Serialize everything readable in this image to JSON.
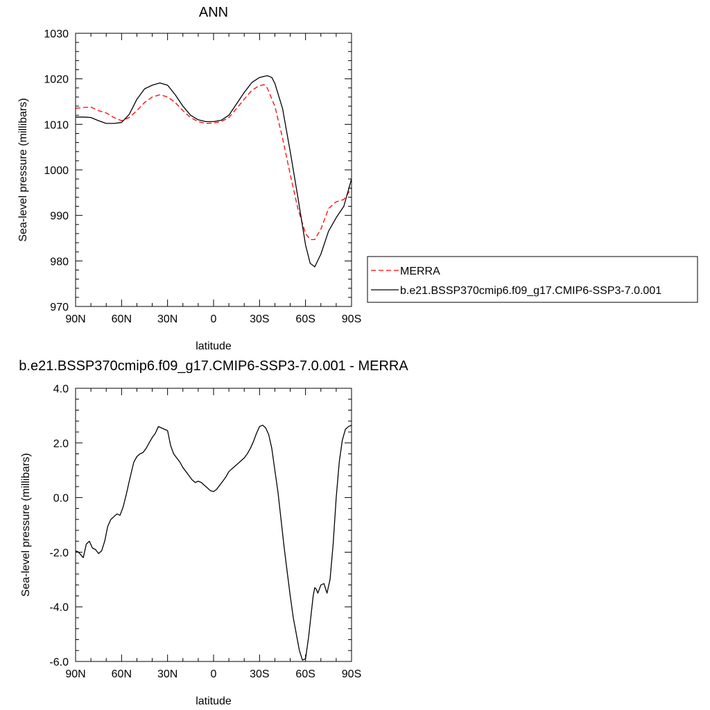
{
  "chart_data": [
    {
      "type": "line",
      "title": "ANN",
      "xlabel": "latitude",
      "ylabel": "Sea-level pressure (millibars)",
      "xlim": [
        -90,
        90
      ],
      "ylim": [
        970,
        1030
      ],
      "x_direction": "north-to-south",
      "x_ticks": [
        -90,
        -60,
        -30,
        0,
        30,
        60,
        90
      ],
      "x_tick_labels": [
        "90N",
        "60N",
        "30N",
        "0",
        "30S",
        "60S",
        "90S"
      ],
      "y_ticks": [
        970,
        980,
        990,
        1000,
        1010,
        1020,
        1030
      ],
      "y_tick_labels": [
        "970",
        "980",
        "990",
        "1000",
        "1010",
        "1020",
        "1030"
      ],
      "grid": false,
      "legend_position": "right",
      "series": [
        {
          "name": "MERRA",
          "color": "#ff0000",
          "dash": "dashed",
          "x": [
            -90,
            -85,
            -80,
            -75,
            -70,
            -65,
            -60,
            -55,
            -50,
            -45,
            -40,
            -35,
            -30,
            -25,
            -20,
            -15,
            -10,
            -5,
            0,
            5,
            10,
            15,
            20,
            25,
            30,
            33,
            35,
            40,
            45,
            50,
            55,
            60,
            63,
            66,
            70,
            75,
            80,
            85,
            90
          ],
          "y": [
            1013.5,
            1013.7,
            1013.8,
            1013.0,
            1012.5,
            1011.5,
            1010.8,
            1011.5,
            1013.0,
            1014.8,
            1016.0,
            1016.5,
            1016.0,
            1014.8,
            1013.0,
            1011.5,
            1010.6,
            1010.2,
            1010.3,
            1010.6,
            1011.5,
            1013.5,
            1015.5,
            1017.5,
            1018.5,
            1018.7,
            1018.0,
            1014.0,
            1007.0,
            999.0,
            991.5,
            986.0,
            984.7,
            984.7,
            987.0,
            991.5,
            993.0,
            993.5,
            996.0
          ]
        },
        {
          "name": "b.e21.BSSP370cmip6.f09_g17.CMIP6-SSP3-7.0.001",
          "color": "#000000",
          "dash": "solid",
          "x": [
            -90,
            -85,
            -80,
            -75,
            -70,
            -65,
            -60,
            -55,
            -50,
            -45,
            -40,
            -35,
            -30,
            -25,
            -20,
            -15,
            -10,
            -5,
            0,
            5,
            10,
            15,
            20,
            25,
            30,
            35,
            38,
            40,
            45,
            50,
            55,
            60,
            63,
            66,
            70,
            75,
            80,
            85,
            90
          ],
          "y": [
            1011.6,
            1011.6,
            1011.5,
            1010.8,
            1010.2,
            1010.2,
            1010.4,
            1012.2,
            1015.5,
            1017.8,
            1018.6,
            1019.1,
            1018.6,
            1016.5,
            1014.0,
            1012.0,
            1011.0,
            1010.6,
            1010.6,
            1010.9,
            1012.0,
            1014.5,
            1017.0,
            1019.2,
            1020.3,
            1020.7,
            1020.3,
            1019.0,
            1013.5,
            1004.0,
            994.0,
            983.5,
            979.5,
            978.7,
            981.5,
            986.5,
            989.5,
            992.0,
            998.0
          ]
        }
      ]
    },
    {
      "type": "line",
      "title": "b.e21.BSSP370cmip6.f09_g17.CMIP6-SSP3-7.0.001 - MERRA",
      "xlabel": "latitude",
      "ylabel": "Sea-level pressure (millibars)",
      "xlim": [
        -90,
        90
      ],
      "ylim": [
        -6,
        4
      ],
      "x_direction": "north-to-south",
      "x_ticks": [
        -90,
        -60,
        -30,
        0,
        30,
        60,
        90
      ],
      "x_tick_labels": [
        "90N",
        "60N",
        "30N",
        "0",
        "30S",
        "60S",
        "90S"
      ],
      "y_ticks": [
        -6,
        -4,
        -2,
        0,
        2,
        4
      ],
      "y_tick_labels": [
        "-6.0",
        "-4.0",
        "-2.0",
        "0.0",
        "2.0",
        "4.0"
      ],
      "grid": false,
      "series": [
        {
          "color": "#000000",
          "dash": "solid",
          "x": [
            -90,
            -88,
            -85,
            -83,
            -81,
            -79,
            -77,
            -75,
            -73,
            -71,
            -69,
            -67,
            -65,
            -63,
            -61,
            -59,
            -57,
            -55,
            -52,
            -50,
            -48,
            -46,
            -44,
            -42,
            -40,
            -38,
            -36,
            -34,
            -32,
            -30,
            -28,
            -26,
            -24,
            -22,
            -20,
            -18,
            -16,
            -14,
            -12,
            -10,
            -8,
            -6,
            -4,
            -2,
            0,
            2,
            4,
            6,
            8,
            10,
            12,
            14,
            16,
            18,
            20,
            22,
            24,
            26,
            28,
            30,
            32,
            34,
            36,
            38,
            40,
            42,
            44,
            46,
            48,
            50,
            52,
            54,
            56,
            58,
            60,
            62,
            64,
            65,
            66,
            67,
            68,
            70,
            72,
            74,
            76,
            78,
            80,
            82,
            84,
            86,
            88,
            90
          ],
          "y": [
            -1.95,
            -2.0,
            -2.2,
            -1.7,
            -1.6,
            -1.85,
            -1.9,
            -2.05,
            -1.95,
            -1.6,
            -1.05,
            -0.8,
            -0.7,
            -0.6,
            -0.65,
            -0.35,
            0.1,
            0.6,
            1.3,
            1.5,
            1.6,
            1.65,
            1.8,
            2.0,
            2.2,
            2.35,
            2.6,
            2.55,
            2.5,
            2.45,
            1.9,
            1.6,
            1.45,
            1.3,
            1.1,
            0.95,
            0.8,
            0.65,
            0.55,
            0.6,
            0.55,
            0.45,
            0.35,
            0.25,
            0.22,
            0.3,
            0.45,
            0.6,
            0.75,
            0.95,
            1.05,
            1.15,
            1.25,
            1.35,
            1.45,
            1.6,
            1.8,
            2.05,
            2.35,
            2.6,
            2.65,
            2.55,
            2.3,
            1.8,
            1.0,
            0.2,
            -0.8,
            -1.8,
            -2.7,
            -3.6,
            -4.4,
            -5.0,
            -5.6,
            -5.95,
            -5.9,
            -5.1,
            -4.1,
            -3.6,
            -3.3,
            -3.35,
            -3.5,
            -3.2,
            -3.15,
            -3.5,
            -3.0,
            -1.7,
            0.0,
            1.3,
            2.1,
            2.5,
            2.6,
            2.65
          ]
        }
      ]
    }
  ]
}
